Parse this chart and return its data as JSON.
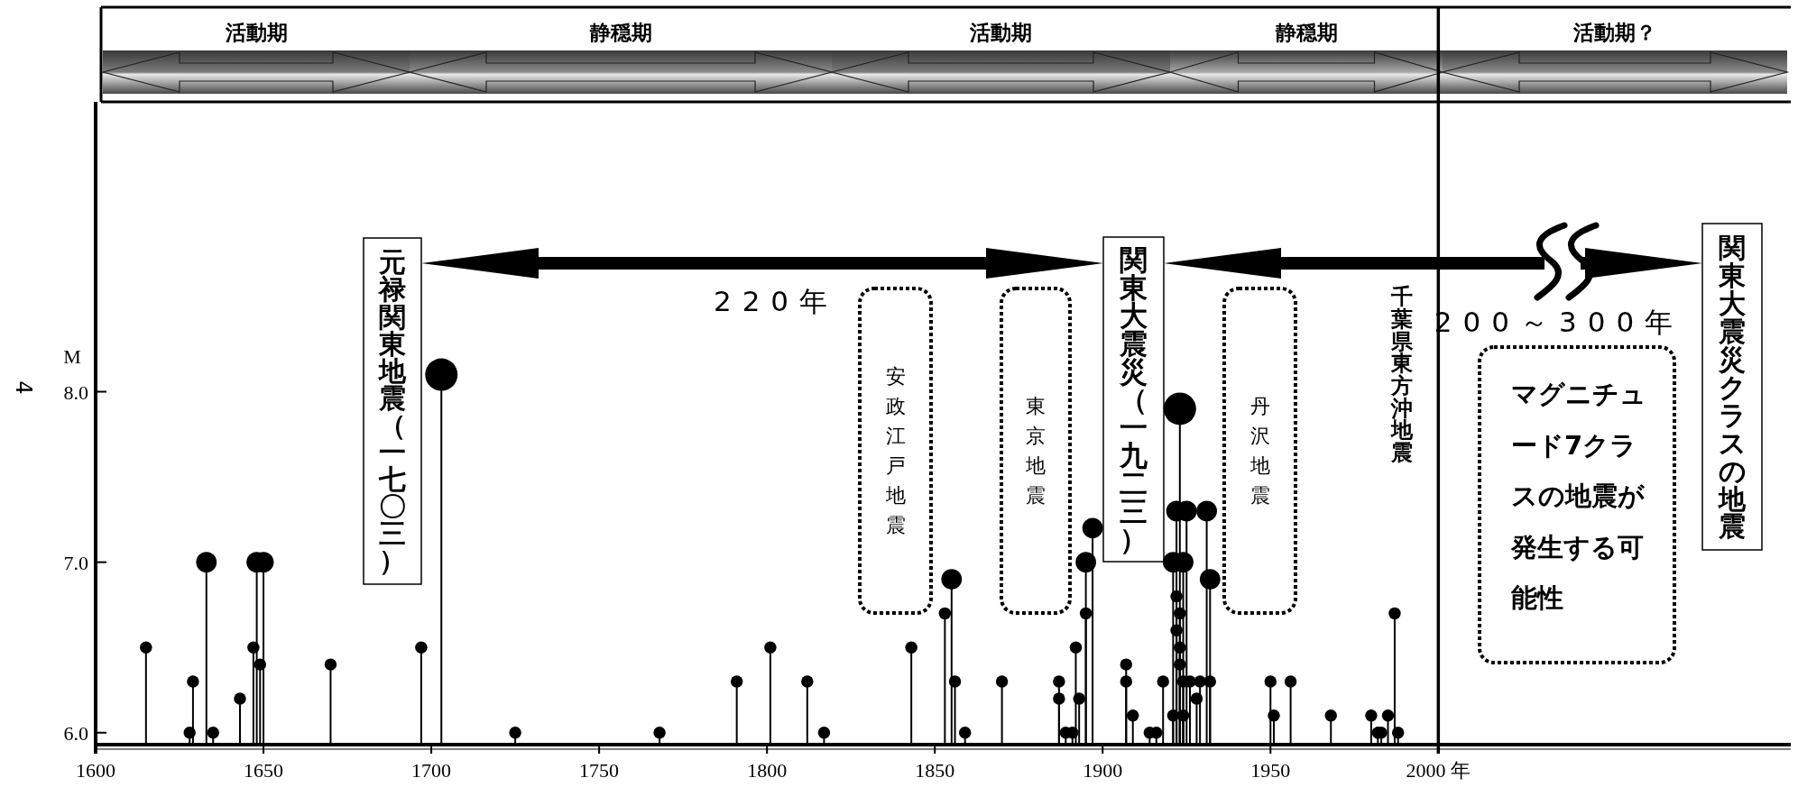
{
  "chart_data": {
    "type": "lollipop",
    "ylabel": "M",
    "x": [
      1615,
      1628,
      1629,
      1633,
      1635,
      1643,
      1647,
      1648,
      1649,
      1650,
      1670,
      1697,
      1703,
      1725,
      1768,
      1791,
      1801,
      1812,
      1817,
      1843,
      1853,
      1855,
      1856,
      1859,
      1870,
      1887,
      1887,
      1889,
      1891,
      1892,
      1893,
      1895,
      1895,
      1897,
      1907,
      1907,
      1909,
      1914,
      1916,
      1918,
      1921,
      1921,
      1922,
      1922,
      1922,
      1923,
      1923,
      1923,
      1923,
      1924,
      1924,
      1924,
      1925,
      1926,
      1928,
      1929,
      1931,
      1932,
      1932,
      1950,
      1951,
      1956,
      1968,
      1980,
      1982,
      1983,
      1985,
      1987,
      1988
    ],
    "series": [
      {
        "color": "#000000",
        "sizes": [
          0.14,
          0.14,
          0.14,
          0.4,
          0.14,
          0.14,
          0.14,
          0.4,
          0.14,
          0.4,
          0.14,
          0.14,
          1,
          0.14,
          0.14,
          0.14,
          0.14,
          0.14,
          0.14,
          0.14,
          0.14,
          0.4,
          0.14,
          0.14,
          0.14,
          0.14,
          0.14,
          0.14,
          0.14,
          0.14,
          0.14,
          0.4,
          0.14,
          0.4,
          0.14,
          0.14,
          0.14,
          0.14,
          0.14,
          0.14,
          0.4,
          0.14,
          0.4,
          0.14,
          0.14,
          1,
          0.14,
          0.14,
          0.14,
          0.4,
          0.14,
          0.14,
          0.4,
          0.14,
          0.14,
          0.14,
          0.4,
          0.4,
          0.14,
          0.14,
          0.14,
          0.14,
          0.14,
          0.14,
          0.14,
          0.14,
          0.14,
          0.14,
          0.14
        ],
        "values": [
          6.5,
          6.0,
          6.3,
          7.0,
          6.0,
          6.2,
          6.5,
          7.0,
          6.4,
          7.0,
          6.4,
          6.5,
          8.1,
          6.0,
          6.0,
          6.3,
          6.5,
          6.3,
          6.0,
          6.5,
          6.7,
          6.9,
          6.3,
          6.0,
          6.3,
          6.3,
          6.2,
          6.0,
          6.0,
          6.5,
          6.2,
          7.0,
          6.7,
          7.2,
          6.4,
          6.3,
          6.1,
          6.0,
          6.0,
          6.3,
          7.0,
          6.1,
          7.3,
          6.8,
          6.6,
          7.9,
          6.7,
          6.5,
          6.4,
          7.0,
          6.3,
          6.1,
          7.3,
          6.3,
          6.2,
          6.3,
          7.3,
          6.9,
          6.3,
          6.3,
          6.1,
          6.3,
          6.1,
          6.1,
          6.0,
          6.0,
          6.1,
          6.7,
          6.0
        ]
      }
    ],
    "xlim": [
      1600,
      2105
    ],
    "xticks": [
      1600,
      1650,
      1700,
      1750,
      1800,
      1850,
      1900,
      1950,
      {
        "value": 2000,
        "label": "2000 年"
      }
    ],
    "ylim": [
      5.93,
      9.7
    ],
    "yticks": [
      {
        "value": 6,
        "label": "6.0"
      },
      {
        "value": 7,
        "label": "7.0"
      },
      {
        "value": 8,
        "label": "8.0"
      }
    ],
    "ref_lines": [
      {
        "axis": "x",
        "value": 2000
      }
    ],
    "annotations": [
      "活動期",
      "静穏期",
      "活動期",
      "静穏期",
      "活動期？",
      "元禄関東地震（一七〇三）",
      "関東大震災（一九二三）",
      "安政江戸地震",
      "東京地震",
      "丹沢地震",
      "千葉県東方沖地震",
      "マグニチュード7クラスの地震が発生する可能性",
      "関東大震災クラスの地震",
      "220年",
      "200～300年",
      "4"
    ],
    "grid": false
  }
}
